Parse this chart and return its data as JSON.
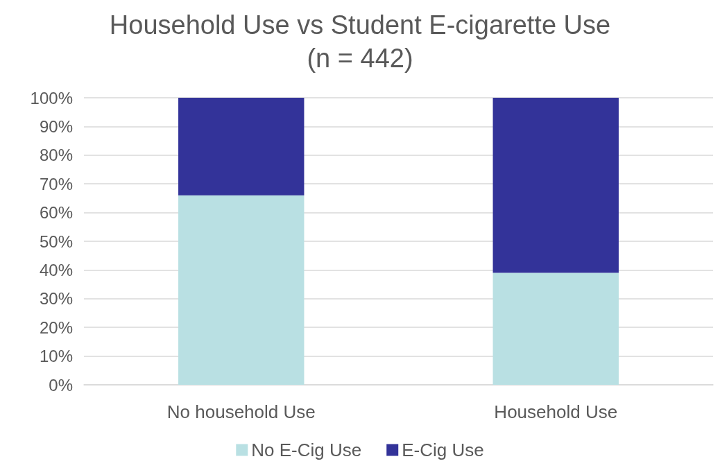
{
  "chart_data": {
    "type": "bar",
    "title": "Household Use vs Student E-cigarette Use",
    "subtitle": "(n = 442)",
    "categories": [
      "No household Use",
      "Household Use"
    ],
    "series": [
      {
        "name": "No E-Cig Use",
        "color": "#b9e0e3",
        "values": [
          66,
          39
        ]
      },
      {
        "name": "E-Cig Use",
        "color": "#333399",
        "values": [
          34,
          61
        ]
      }
    ],
    "stacked": true,
    "ylim": [
      0,
      100
    ],
    "yticks": [
      {
        "value": 0,
        "label": "0%"
      },
      {
        "value": 10,
        "label": "10%"
      },
      {
        "value": 20,
        "label": "20%"
      },
      {
        "value": 30,
        "label": "30%"
      },
      {
        "value": 40,
        "label": "40%"
      },
      {
        "value": 50,
        "label": "50%"
      },
      {
        "value": 60,
        "label": "60%"
      },
      {
        "value": 70,
        "label": "70%"
      },
      {
        "value": 80,
        "label": "80%"
      },
      {
        "value": 90,
        "label": "90%"
      },
      {
        "value": 100,
        "label": "100%"
      }
    ],
    "grid": "y",
    "legend": "bottom"
  }
}
